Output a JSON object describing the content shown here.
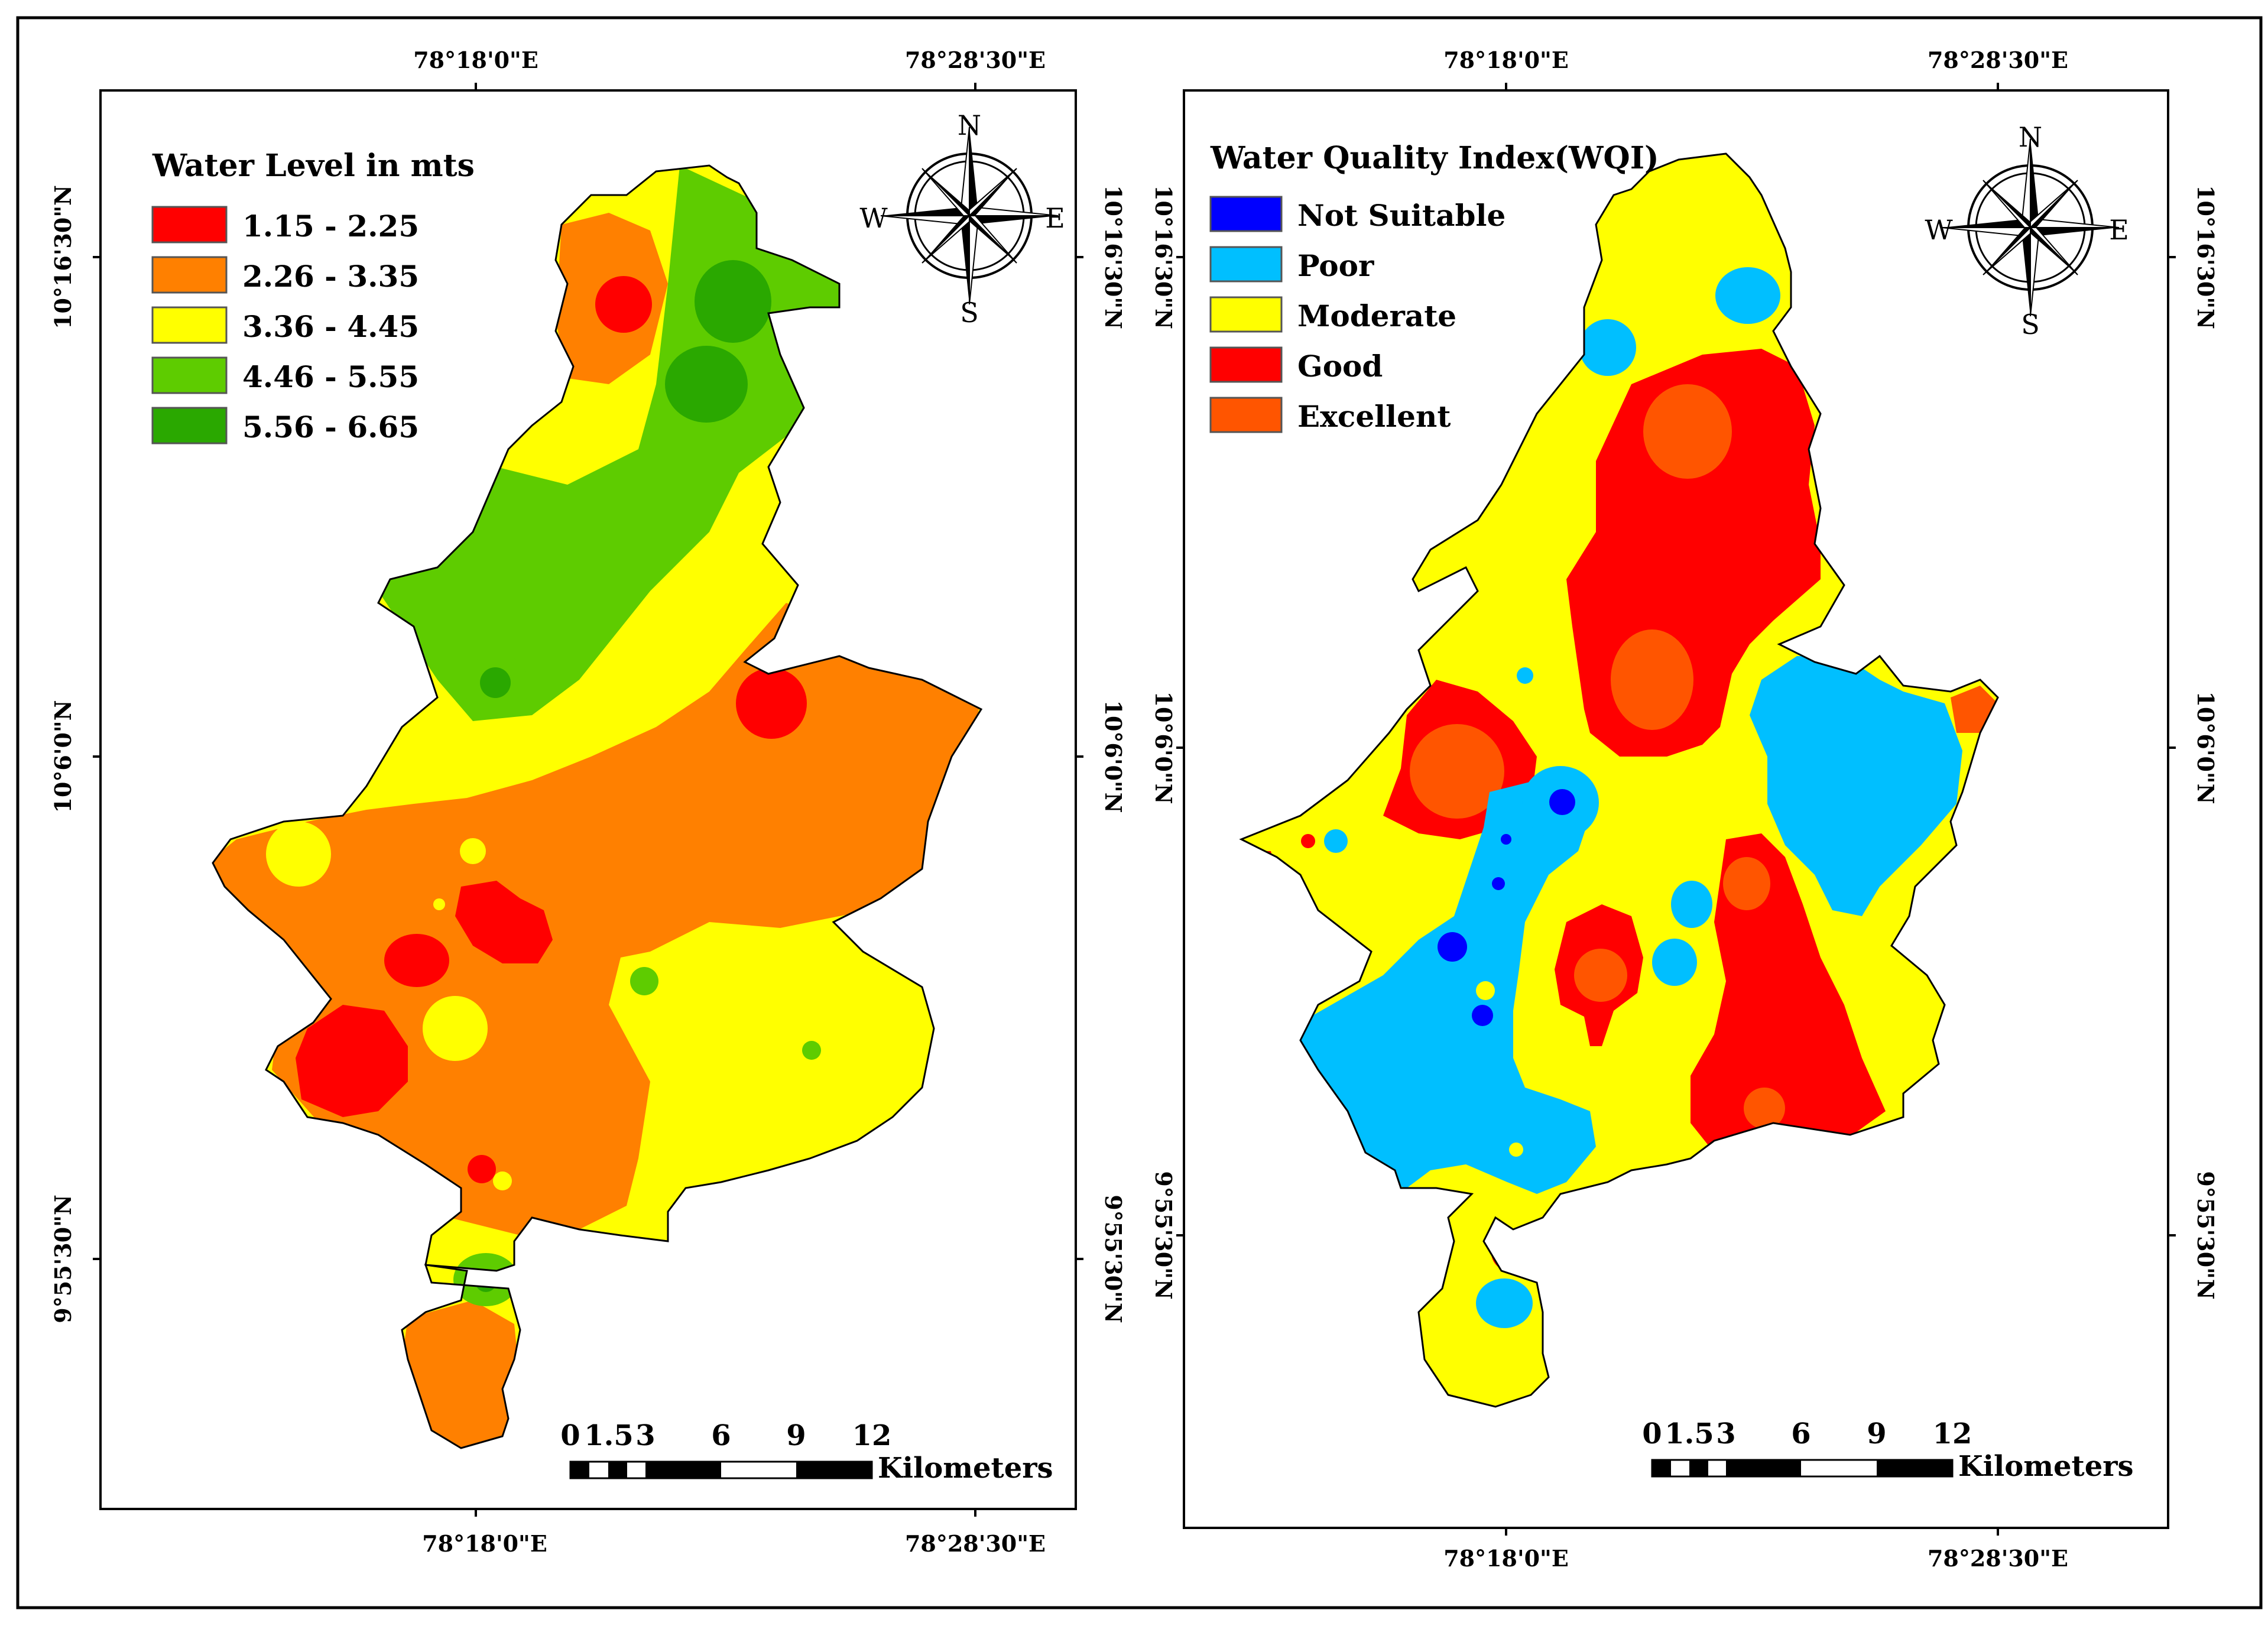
{
  "colors": {
    "wl_red": "#ff0000",
    "wl_orange": "#ff8000",
    "wl_yellow": "#ffff00",
    "wl_lightgreen": "#5ecc00",
    "wl_darkgreen": "#2aa800",
    "wq_blue": "#0000ff",
    "wq_cyan": "#00bfff",
    "wq_yellow": "#ffff00",
    "wq_red": "#ff0000",
    "wq_excellent": "#ff5500"
  },
  "left_map": {
    "legend_title": "Water Level in mts",
    "legend": [
      {
        "label": "1.15 - 2.25",
        "color": "#ff0000"
      },
      {
        "label": "2.26 - 3.35",
        "color": "#ff8000"
      },
      {
        "label": "3.36 - 4.45",
        "color": "#ffff00"
      },
      {
        "label": "4.46 - 5.55",
        "color": "#5ecc00"
      },
      {
        "label": "5.56 - 6.65",
        "color": "#2aa800"
      }
    ],
    "top_labels": [
      "78°18'0\"E",
      "78°28'30\"E"
    ],
    "bottom_labels": [
      "78°18'0\"E",
      "78°28'30\"E"
    ],
    "left_labels": [
      "10°16'30\"N",
      "10°6'0\"N",
      "9°55'30\"N"
    ],
    "right_labels": [
      "10°16'30\"N",
      "10°6'0\"N",
      "9°55'30\"N"
    ],
    "compass": {
      "n": "N",
      "s": "S",
      "e": "E",
      "w": "W"
    },
    "scale": {
      "ticks": [
        "0",
        "1.5",
        "3",
        "6",
        "9",
        "12"
      ],
      "unit": "Kilometers"
    }
  },
  "right_map": {
    "legend_title": "Water Quality Index(WQI)",
    "legend": [
      {
        "label": "Not Suitable",
        "color": "#0000ff"
      },
      {
        "label": "Poor",
        "color": "#00bfff"
      },
      {
        "label": "Moderate",
        "color": "#ffff00"
      },
      {
        "label": "Good",
        "color": "#ff0000"
      },
      {
        "label": "Excellent",
        "color": "#ff5500"
      }
    ],
    "top_labels": [
      "78°18'0\"E",
      "78°28'30\"E"
    ],
    "bottom_labels": [
      "78°18'0\"E",
      "78°28'30\"E"
    ],
    "left_labels": [
      "10°16'30\"N",
      "10°6'0\"N",
      "9°55'30\"N"
    ],
    "right_labels": [
      "10°16'30\"N",
      "10°6'0\"N",
      "9°55'30\"N"
    ],
    "compass": {
      "n": "N",
      "s": "S",
      "e": "E",
      "w": "W"
    },
    "scale": {
      "ticks": [
        "0",
        "1.5",
        "3",
        "6",
        "9",
        "12"
      ],
      "unit": "Kilometers"
    }
  }
}
